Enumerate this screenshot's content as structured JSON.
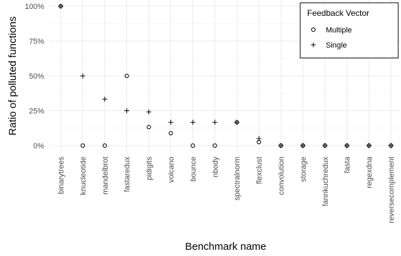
{
  "chart_data": {
    "type": "scatter",
    "title": "",
    "xlabel": "Benchmark name",
    "ylabel": "Ratio of polluted functions",
    "ylim": [
      0,
      1
    ],
    "y_ticks": [
      0,
      0.25,
      0.5,
      0.75,
      1
    ],
    "y_tick_labels": [
      "0%",
      "25%",
      "50%",
      "75%",
      "100%"
    ],
    "grid": true,
    "legend": {
      "title": "Feedback Vector",
      "placement": "top-right"
    },
    "categories": [
      "binarytrees",
      "knucleotide",
      "mandelbrot",
      "fastaredux",
      "pidigits",
      "volcano",
      "bounce",
      "nbody",
      "spectralnorm",
      "flexclust",
      "convolution",
      "storage",
      "fannkuchredux",
      "fasta",
      "regexdna",
      "reversecomplement"
    ],
    "series": [
      {
        "name": "Multiple",
        "marker": "circle",
        "values": [
          1,
          0,
          0,
          0.5,
          0.133,
          0.089,
          0,
          0,
          0.167,
          0.025,
          0,
          0,
          0,
          0,
          0,
          0
        ]
      },
      {
        "name": "Single",
        "marker": "plus",
        "values": [
          1,
          0.5,
          0.333,
          0.25,
          0.242,
          0.167,
          0.167,
          0.167,
          0.167,
          0.05,
          0,
          0,
          0,
          0,
          0,
          0
        ]
      }
    ]
  }
}
